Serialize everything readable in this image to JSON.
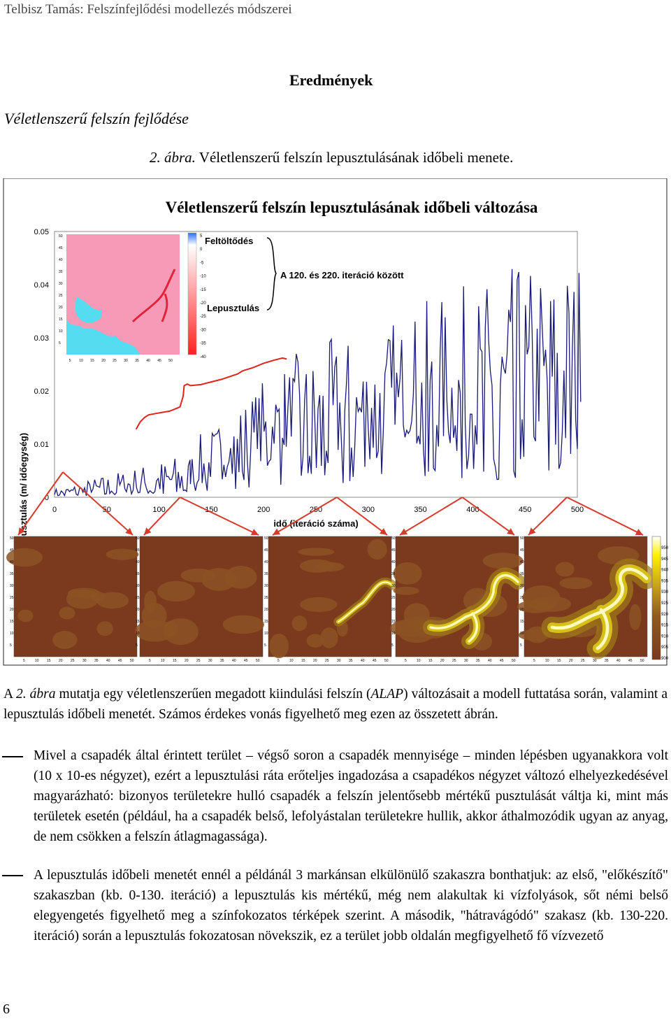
{
  "running_head": "Telbisz Tamás: Felszínfejlődési modellezés módszerei",
  "section_title": "Eredmények",
  "subsection_title": "Véletlenszerű felszín fejlődése",
  "figure_caption": {
    "label": "2. ábra.",
    "text": " Véletlenszerű felszín lepusztulásának időbeli menete."
  },
  "chart_data": {
    "type": "line",
    "title": "Véletlenszerű felszín lepusztulásának időbeli változása",
    "xlabel": "idő (iteráció száma)",
    "ylabel": "lepusztulás (m/ időegység)",
    "xlim": [
      0,
      500
    ],
    "ylim": [
      0,
      0.05
    ],
    "xticks": [
      "0",
      "50",
      "100",
      "150",
      "200",
      "250",
      "300",
      "350",
      "400",
      "450",
      "500"
    ],
    "yticks": [
      "0",
      "0.01",
      "0.02",
      "0.03",
      "0.04",
      "0.05"
    ],
    "series": [
      {
        "color": "#1a1a7a",
        "segments": [
          {
            "x": [
              0,
              130
            ],
            "base": [
              0.0005,
              0.003
            ],
            "amp": [
              0.001,
              0.005
            ]
          },
          {
            "x": [
              130,
              220
            ],
            "base": [
              0.003,
              0.012
            ],
            "amp": [
              0.006,
              0.012
            ]
          },
          {
            "x": [
              220,
              504
            ],
            "base": [
              0.012,
              0.018
            ],
            "amp": [
              0.012,
              0.026
            ]
          }
        ]
      },
      {
        "color": "#e0241b",
        "x": [
          78,
          82,
          86,
          90,
          98,
          104,
          110,
          114,
          120,
          123,
          124,
          127,
          130,
          140,
          160,
          175,
          180,
          190,
          200,
          210,
          218,
          222
        ],
        "y": [
          0.0128,
          0.0142,
          0.015,
          0.0155,
          0.0158,
          0.016,
          0.0162,
          0.0165,
          0.017,
          0.019,
          0.021,
          0.0213,
          0.021,
          0.0212,
          0.0222,
          0.0232,
          0.0238,
          0.0244,
          0.0252,
          0.0258,
          0.0262,
          0.026
        ]
      }
    ],
    "annotations": {
      "upper_label": "Feltöltődés",
      "lower_label": "Lepusztulás",
      "brace_label": "A 120. és 220. iteráció között"
    },
    "inset_legend": {
      "ticks": [
        "5",
        "0",
        "-5",
        "-10",
        "-15",
        "-20",
        "-25",
        "-30",
        "-35",
        "-40"
      ],
      "colors": [
        "#2e6df0",
        "#ffffff",
        "#ff2020"
      ]
    },
    "inset_map_ticks": [
      "5",
      "10",
      "15",
      "20",
      "25",
      "30",
      "35",
      "40",
      "45",
      "50"
    ],
    "small_map_ticks_y": [
      "50",
      "45",
      "40",
      "35",
      "30",
      "25",
      "20",
      "15",
      "10",
      "5"
    ],
    "small_map_ticks_x": [
      "5",
      "10",
      "15",
      "20",
      "25",
      "30",
      "35",
      "40",
      "45",
      "50"
    ],
    "elevation_legend": [
      "950",
      "945",
      "940",
      "935",
      "930",
      "925",
      "920",
      "915",
      "910",
      "905",
      "900"
    ],
    "map_iterations": [
      0,
      120,
      270,
      390,
      490
    ]
  },
  "paragraph": {
    "a": "A ",
    "ref": "2. ábra",
    "b": " mutatja egy véletlenszerűen megadott kiindulási felszín (",
    "alap": "ALAP",
    "c": ") változásait a modell futtatása során, valamint a lepusztulás időbeli menetét. Számos érdekes vonás figyelhető meg ezen az összetett ábrán."
  },
  "bullets": [
    "Mivel a csapadék által érintett terület – végső soron a csapadék mennyisége – minden lépésben ugyanakkora volt (10 x 10-es négyzet), ezért a lepusztulási ráta erőteljes ingadozása a csapadékos négyzet változó elhelyezkedésével magyarázható: bizonyos területekre hulló csapadék a felszín jelentősebb mértékű pusztulását váltja ki, mint más területek esetén (például, ha a csapadék belső, lefolyástalan területekre hullik, akkor áthalmozódik ugyan az anyag, de nem csökken a felszín átlagmagassága).",
    "A lepusztulás időbeli menetét ennél a példánál 3 markánsan elkülönülő szakaszra bonthatjuk: az első, \"előkészítő\" szakaszban (kb. 0-130. iteráció) a lepusztulás kis mértékű, még nem alakultak ki vízfolyások, sőt némi belső elegyengetés figyelhető meg a színfokozatos térképek szerint. A második, \"hátravágódó\" szakasz (kb. 130-220. iteráció) során a lepusztulás fokozatosan növekszik, ez a terület jobb oldalán megfigyelhető fő vízvezető"
  ],
  "page_number": "6"
}
